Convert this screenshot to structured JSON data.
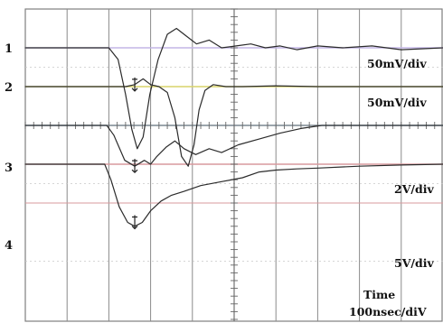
{
  "chart_data": {
    "type": "line",
    "title": "",
    "grid": true,
    "x_divisions": 10,
    "y_divisions": 8,
    "time_base": {
      "label": "Time",
      "value": "100nsec/diV",
      "x_range_ns": [
        0,
        1000
      ]
    },
    "channel_colors": {
      "1": "#c3b6e6",
      "2": "#d9d36a",
      "3": "#a8c9e6",
      "4": "#d89a9e"
    },
    "channels": [
      {
        "label": "1",
        "scale": "50mV/div",
        "baseline_div": 1.0,
        "points": [
          [
            0,
            0
          ],
          [
            200,
            0
          ],
          [
            222,
            -0.3
          ],
          [
            240,
            -1.2
          ],
          [
            255,
            -2.1
          ],
          [
            268,
            -2.6
          ],
          [
            282,
            -2.3
          ],
          [
            298,
            -1.2
          ],
          [
            318,
            -0.3
          ],
          [
            340,
            0.35
          ],
          [
            362,
            0.5
          ],
          [
            386,
            0.3
          ],
          [
            410,
            0.1
          ],
          [
            440,
            0.2
          ],
          [
            470,
            0.0
          ],
          [
            505,
            0.05
          ],
          [
            540,
            0.1
          ],
          [
            575,
            0.0
          ],
          [
            610,
            0.05
          ],
          [
            650,
            -0.05
          ],
          [
            700,
            0.05
          ],
          [
            760,
            0.0
          ],
          [
            830,
            0.05
          ],
          [
            900,
            -0.05
          ],
          [
            1000,
            0.0
          ]
        ]
      },
      {
        "label": "2",
        "scale": "50mV/div",
        "baseline_div": 2.0,
        "points": [
          [
            0,
            0
          ],
          [
            240,
            0
          ],
          [
            262,
            0.05
          ],
          [
            282,
            0.2
          ],
          [
            300,
            0.05
          ],
          [
            320,
            0.0
          ],
          [
            340,
            -0.15
          ],
          [
            358,
            -0.8
          ],
          [
            374,
            -1.8
          ],
          [
            390,
            -2.05
          ],
          [
            404,
            -1.5
          ],
          [
            416,
            -0.6
          ],
          [
            430,
            -0.1
          ],
          [
            450,
            0.05
          ],
          [
            480,
            0.0
          ],
          [
            520,
            0.0
          ],
          [
            600,
            0.02
          ],
          [
            700,
            0.0
          ],
          [
            800,
            0.0
          ],
          [
            1000,
            0.0
          ]
        ]
      },
      {
        "label": "3",
        "scale": "2V/div",
        "baseline_div": 3.0,
        "points": [
          [
            0,
            0
          ],
          [
            195,
            0
          ],
          [
            212,
            -0.25
          ],
          [
            238,
            -0.9
          ],
          [
            262,
            -1.05
          ],
          [
            285,
            -0.9
          ],
          [
            300,
            -1.0
          ],
          [
            315,
            -0.8
          ],
          [
            338,
            -0.55
          ],
          [
            358,
            -0.4
          ],
          [
            380,
            -0.6
          ],
          [
            408,
            -0.75
          ],
          [
            440,
            -0.6
          ],
          [
            470,
            -0.7
          ],
          [
            510,
            -0.5
          ],
          [
            560,
            -0.35
          ],
          [
            610,
            -0.2
          ],
          [
            660,
            -0.08
          ],
          [
            710,
            0.0
          ],
          [
            800,
            0.0
          ],
          [
            1000,
            0.0
          ]
        ]
      },
      {
        "label": "4",
        "scale": "5V/div",
        "baseline_div": 4.0,
        "points": [
          [
            0,
            0
          ],
          [
            190,
            0
          ],
          [
            205,
            -0.4
          ],
          [
            225,
            -1.1
          ],
          [
            245,
            -1.5
          ],
          [
            262,
            -1.6
          ],
          [
            280,
            -1.5
          ],
          [
            300,
            -1.2
          ],
          [
            325,
            -0.95
          ],
          [
            350,
            -0.8
          ],
          [
            380,
            -0.7
          ],
          [
            420,
            -0.55
          ],
          [
            470,
            -0.45
          ],
          [
            520,
            -0.35
          ],
          [
            560,
            -0.2
          ],
          [
            600,
            -0.15
          ],
          [
            650,
            -0.12
          ],
          [
            700,
            -0.1
          ],
          [
            800,
            -0.05
          ],
          [
            900,
            -0.02
          ],
          [
            1000,
            0.0
          ]
        ]
      }
    ]
  }
}
